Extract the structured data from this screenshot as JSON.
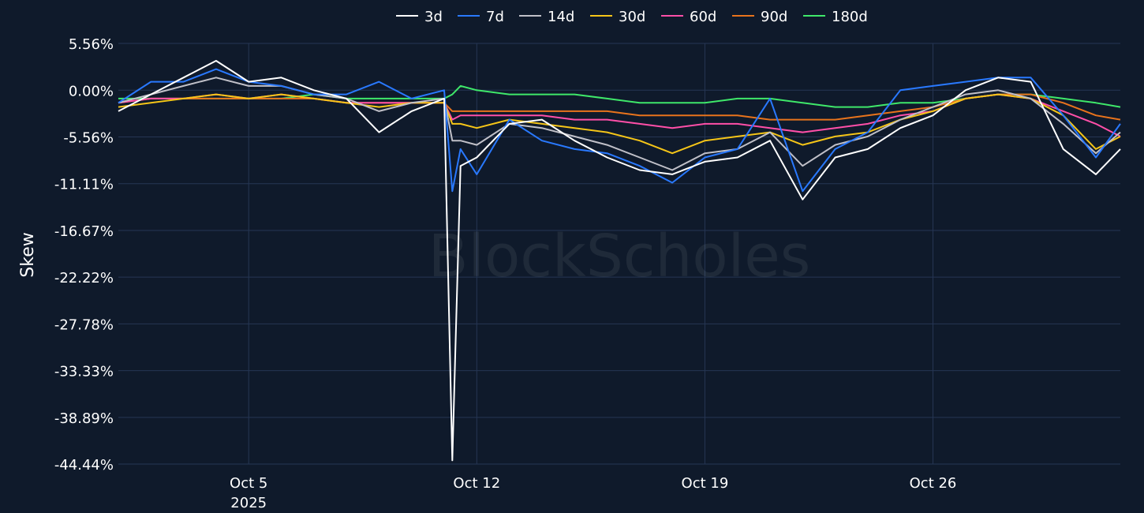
{
  "watermark": "BlockScholes",
  "chart_data": {
    "type": "line",
    "xlabel": "",
    "ylabel": "Skew",
    "ylim": [
      -44.44,
      5.56
    ],
    "y_ticks": [
      "5.56%",
      "0.00%",
      "-5.56%",
      "-11.11%",
      "-16.67%",
      "-22.22%",
      "-27.78%",
      "-33.33%",
      "-38.89%",
      "-44.44%"
    ],
    "y_tick_values": [
      5.56,
      0.0,
      -5.56,
      -11.11,
      -16.67,
      -22.22,
      -27.78,
      -33.33,
      -38.89,
      -44.44
    ],
    "x_range": [
      "2025-10-01",
      "2025-10-31T18:00"
    ],
    "x_ticks": [
      {
        "date": "2025-10-05",
        "label": "Oct 5",
        "sublabel": "2025"
      },
      {
        "date": "2025-10-12",
        "label": "Oct 12",
        "sublabel": ""
      },
      {
        "date": "2025-10-19",
        "label": "Oct 19",
        "sublabel": ""
      },
      {
        "date": "2025-10-26",
        "label": "Oct 26",
        "sublabel": ""
      }
    ],
    "legend_position": "top-center",
    "grid": true,
    "x": [
      "2025-10-01",
      "2025-10-02",
      "2025-10-03",
      "2025-10-04",
      "2025-10-05",
      "2025-10-06",
      "2025-10-07",
      "2025-10-08",
      "2025-10-09",
      "2025-10-10",
      "2025-10-11",
      "2025-10-11T06:00",
      "2025-10-11T12:00",
      "2025-10-12",
      "2025-10-13",
      "2025-10-14",
      "2025-10-15",
      "2025-10-16",
      "2025-10-17",
      "2025-10-18",
      "2025-10-19",
      "2025-10-20",
      "2025-10-21",
      "2025-10-22",
      "2025-10-23",
      "2025-10-24",
      "2025-10-25",
      "2025-10-26",
      "2025-10-27",
      "2025-10-28",
      "2025-10-29",
      "2025-10-30",
      "2025-10-31",
      "2025-10-31T18:00"
    ],
    "series": [
      {
        "name": "3d",
        "color": "#ffffff",
        "values": [
          -2.5,
          -0.5,
          1.5,
          3.5,
          1.0,
          1.5,
          0.0,
          -1.0,
          -5.0,
          -2.5,
          -1.0,
          -44.0,
          -9.0,
          -8.0,
          -4.0,
          -3.5,
          -6.0,
          -8.0,
          -9.5,
          -10.0,
          -8.5,
          -8.0,
          -6.0,
          -13.0,
          -8.0,
          -7.0,
          -4.5,
          -3.0,
          0.0,
          1.5,
          1.0,
          -7.0,
          -10.0,
          -7.0
        ]
      },
      {
        "name": "7d",
        "color": "#2979ff",
        "values": [
          -1.5,
          1.0,
          1.0,
          2.5,
          1.0,
          0.5,
          -0.5,
          -0.5,
          1.0,
          -1.0,
          0.0,
          -12.0,
          -7.0,
          -10.0,
          -3.5,
          -6.0,
          -7.0,
          -7.5,
          -9.0,
          -11.0,
          -8.0,
          -7.0,
          -1.0,
          -12.0,
          -7.0,
          -5.0,
          0.0,
          0.5,
          1.0,
          1.5,
          1.5,
          -3.0,
          -8.0,
          -4.0
        ]
      },
      {
        "name": "14d",
        "color": "#c0c0c8",
        "values": [
          -1.5,
          -0.5,
          0.5,
          1.5,
          0.5,
          0.5,
          -0.5,
          -1.0,
          -2.5,
          -1.5,
          -1.0,
          -6.0,
          -6.0,
          -6.5,
          -4.0,
          -4.5,
          -5.5,
          -6.5,
          -8.0,
          -9.5,
          -7.5,
          -7.0,
          -5.0,
          -9.0,
          -6.5,
          -5.5,
          -3.5,
          -2.0,
          -0.5,
          0.0,
          -1.0,
          -4.0,
          -7.5,
          -5.0
        ]
      },
      {
        "name": "30d",
        "color": "#f5c518",
        "values": [
          -2.0,
          -1.5,
          -1.0,
          -0.5,
          -1.0,
          -0.5,
          -1.0,
          -1.5,
          -2.0,
          -1.5,
          -1.5,
          -4.0,
          -4.0,
          -4.5,
          -3.5,
          -4.0,
          -4.5,
          -5.0,
          -6.0,
          -7.5,
          -6.0,
          -5.5,
          -5.0,
          -6.5,
          -5.5,
          -5.0,
          -3.5,
          -2.5,
          -1.0,
          -0.5,
          -1.0,
          -3.0,
          -7.0,
          -5.5
        ]
      },
      {
        "name": "60d",
        "color": "#ff4fa8",
        "values": [
          -1.5,
          -1.0,
          -1.0,
          -0.5,
          -1.0,
          -0.5,
          -1.0,
          -1.5,
          -1.5,
          -1.5,
          -1.5,
          -3.5,
          -3.0,
          -3.0,
          -3.0,
          -3.0,
          -3.5,
          -3.5,
          -4.0,
          -4.5,
          -4.0,
          -4.0,
          -4.5,
          -5.0,
          -4.5,
          -4.0,
          -3.0,
          -2.5,
          -1.0,
          -0.5,
          -1.0,
          -2.5,
          -4.0,
          -5.5
        ]
      },
      {
        "name": "90d",
        "color": "#e8731c",
        "values": [
          -1.5,
          -1.0,
          -1.0,
          -1.0,
          -1.0,
          -1.0,
          -1.0,
          -1.5,
          -1.5,
          -1.5,
          -1.5,
          -2.5,
          -2.5,
          -2.5,
          -2.5,
          -2.5,
          -2.5,
          -2.5,
          -3.0,
          -3.0,
          -3.0,
          -3.0,
          -3.5,
          -3.5,
          -3.5,
          -3.0,
          -2.5,
          -2.0,
          -1.0,
          -0.5,
          -0.5,
          -1.5,
          -3.0,
          -3.5
        ]
      },
      {
        "name": "180d",
        "color": "#3fe86a",
        "values": [
          -1.0,
          -1.0,
          -1.0,
          -1.0,
          -1.0,
          -1.0,
          -0.5,
          -1.0,
          -1.0,
          -1.0,
          -1.0,
          -0.5,
          0.5,
          0.0,
          -0.5,
          -0.5,
          -0.5,
          -1.0,
          -1.5,
          -1.5,
          -1.5,
          -1.0,
          -1.0,
          -1.5,
          -2.0,
          -2.0,
          -1.5,
          -1.5,
          -1.0,
          -0.5,
          -0.5,
          -1.0,
          -1.5,
          -2.0
        ]
      }
    ]
  }
}
